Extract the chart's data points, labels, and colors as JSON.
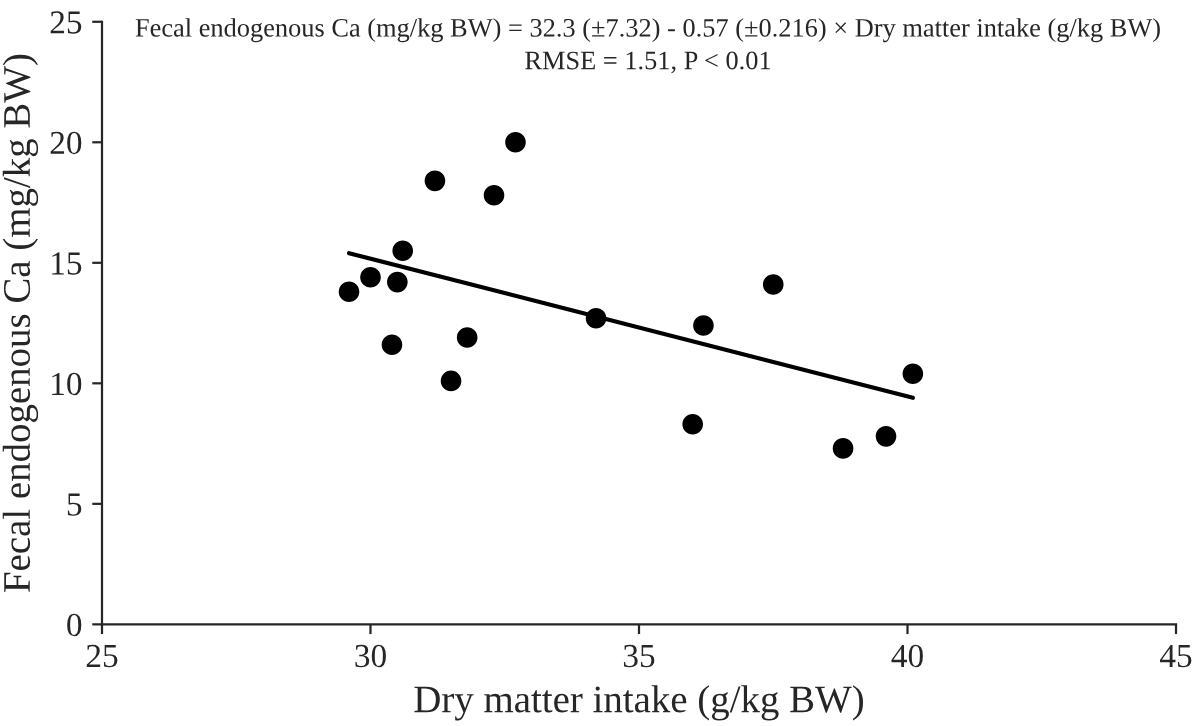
{
  "chart_data": {
    "type": "scatter",
    "xlabel": "Dry matter intake (g/kg BW)",
    "ylabel": "Fecal endogenous Ca (mg/kg BW)",
    "annotations": [
      "Fecal endogenous Ca (mg/kg BW) = 32.3 (±7.32) - 0.57 (±0.216) × Dry matter intake (g/kg BW)",
      "RMSE = 1.51, P < 0.01"
    ],
    "xlim": [
      25,
      45
    ],
    "xticks": [
      25,
      30,
      35,
      40,
      45
    ],
    "ylim": [
      0,
      25
    ],
    "yticks": [
      0,
      5,
      10,
      15,
      20,
      25
    ],
    "grid": false,
    "legend": false,
    "series": [
      {
        "marker": "circle",
        "color": "#000000",
        "x": [
          29.6,
          30.0,
          30.5,
          30.6,
          30.4,
          31.5,
          31.8,
          31.2,
          32.3,
          32.7,
          34.2,
          36.0,
          36.2,
          37.5,
          38.8,
          39.6,
          40.1
        ],
        "values": [
          13.8,
          14.4,
          14.2,
          15.5,
          11.6,
          10.1,
          11.9,
          18.4,
          17.8,
          20.0,
          12.7,
          8.3,
          12.4,
          14.1,
          7.3,
          7.8,
          10.4
        ]
      },
      {
        "type": "line",
        "color": "#000000",
        "line_style": "solid",
        "x": [
          29.6,
          40.1
        ],
        "values": [
          15.4,
          9.4
        ]
      }
    ]
  }
}
